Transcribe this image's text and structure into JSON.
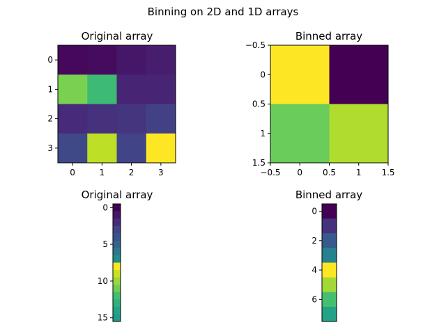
{
  "figure": {
    "suptitle": "Binning on 2D and 1D arrays"
  },
  "chart_data": [
    {
      "type": "heatmap",
      "title": "Original array",
      "rows": 4,
      "cols": 4,
      "xticks": [
        0,
        1,
        2,
        3
      ],
      "yticks": [
        0,
        1,
        2,
        3
      ],
      "xlim": [
        -0.5,
        3.5
      ],
      "ylim": [
        3.5,
        -0.5
      ],
      "values": [
        [
          0.02,
          0.03,
          0.06,
          0.08
        ],
        [
          0.8,
          0.68,
          0.1,
          0.1
        ],
        [
          0.12,
          0.14,
          0.15,
          0.19
        ],
        [
          0.22,
          0.9,
          0.2,
          1.0
        ]
      ]
    },
    {
      "type": "heatmap",
      "title": "Binned array",
      "rows": 2,
      "cols": 2,
      "xticks": [
        -0.5,
        0.0,
        0.5,
        1.0,
        1.5
      ],
      "yticks": [
        -0.5,
        0.0,
        0.5,
        1.0,
        1.5
      ],
      "xlim": [
        -0.5,
        1.5
      ],
      "ylim": [
        1.5,
        -0.5
      ],
      "values": [
        [
          1.0,
          0.0
        ],
        [
          0.77,
          0.88
        ]
      ]
    },
    {
      "type": "heatmap",
      "title": "Original array",
      "rows": 16,
      "cols": 1,
      "yticks": [
        0,
        5,
        10,
        15
      ],
      "ylim": [
        15.5,
        -0.5
      ],
      "values": [
        0.0,
        0.06,
        0.12,
        0.2,
        0.26,
        0.32,
        0.4,
        0.48,
        1.0,
        0.92,
        0.85,
        0.78,
        0.7,
        0.64,
        0.58,
        0.54
      ]
    },
    {
      "type": "heatmap",
      "title": "Binned array",
      "rows": 8,
      "cols": 1,
      "yticks": [
        0,
        2,
        4,
        6
      ],
      "ylim": [
        7.5,
        -0.5
      ],
      "values": [
        0.0,
        0.14,
        0.28,
        0.44,
        1.0,
        0.86,
        0.7,
        0.58
      ]
    }
  ]
}
